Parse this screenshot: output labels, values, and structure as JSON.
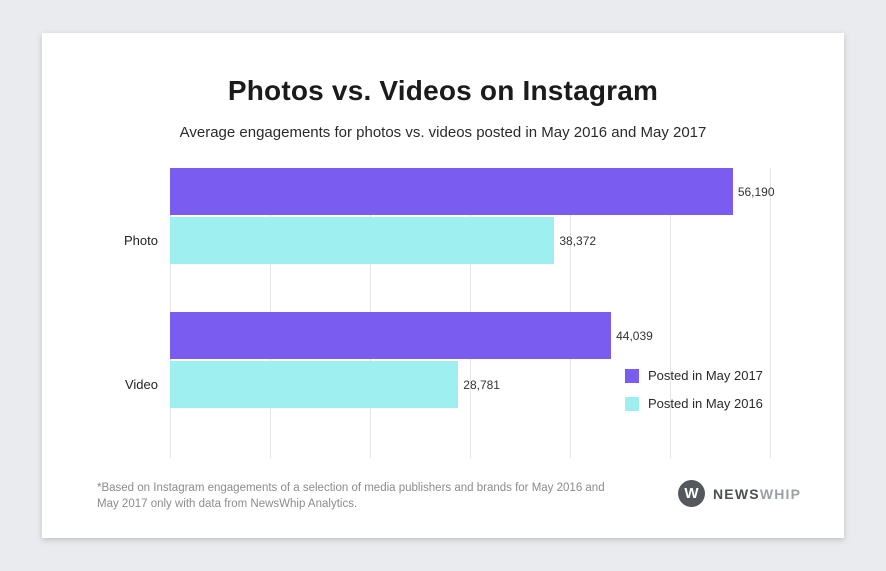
{
  "card": {
    "title": "Photos vs. Videos on Instagram",
    "subtitle": "Average engagements for photos vs. videos posted in May 2016 and May 2017",
    "footnote": "*Based on Instagram engagements of a selection of media publishers and brands for May 2016 and May 2017 only with data from NewsWhip Analytics.",
    "logo": {
      "mark": "W",
      "text_primary": "NEWS",
      "text_secondary": "WHIP"
    }
  },
  "chart_data": {
    "type": "bar",
    "orientation": "horizontal",
    "title": "Photos vs. Videos on Instagram",
    "subtitle": "Average engagements for photos vs. videos posted in May 2016 and May 2017",
    "categories": [
      "Photo",
      "Video"
    ],
    "series": [
      {
        "name": "Posted in May 2017",
        "color": "#7b5cf0",
        "values": [
          56190,
          44039
        ],
        "value_labels": [
          "56,190",
          "44,039"
        ]
      },
      {
        "name": "Posted in May 2016",
        "color": "#9ef0f0",
        "values": [
          38372,
          28781
        ],
        "value_labels": [
          "38,372",
          "28,781"
        ]
      }
    ],
    "xlim": [
      0,
      60000
    ],
    "gridline_interval": 10000,
    "grid": true,
    "legend_position": "bottom-right"
  }
}
